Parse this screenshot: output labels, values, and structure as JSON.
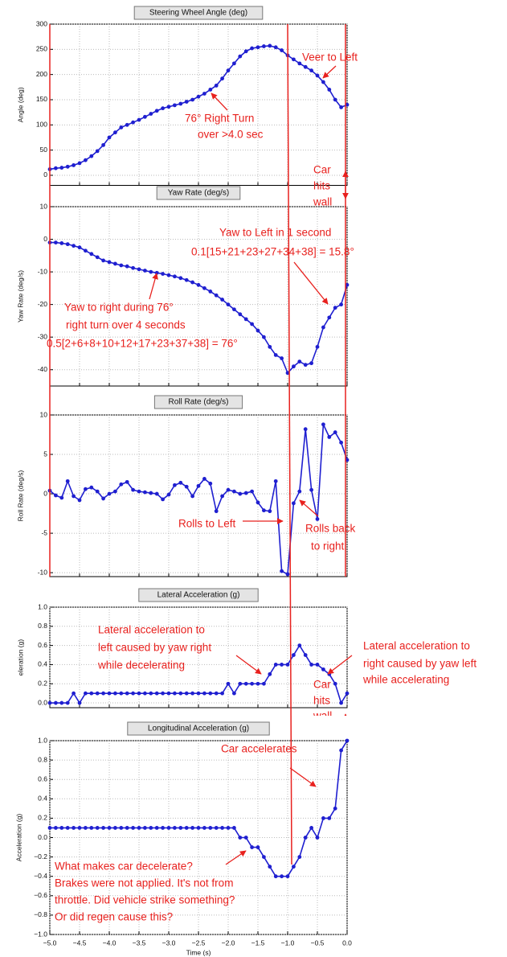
{
  "chart_data": [
    {
      "type": "line",
      "title": "Steering Wheel Angle (deg)",
      "ylabel": "Angle (deg)",
      "color": "#1f1fd0",
      "x": [
        -5,
        -4.9,
        -4.8,
        -4.7,
        -4.6,
        -4.5,
        -4.4,
        -4.3,
        -4.2,
        -4.1,
        -4,
        -3.9,
        -3.8,
        -3.7,
        -3.6,
        -3.5,
        -3.4,
        -3.3,
        -3.2,
        -3.1,
        -3,
        -2.9,
        -2.8,
        -2.7,
        -2.6,
        -2.5,
        -2.4,
        -2.3,
        -2.2,
        -2.1,
        -2,
        -1.9,
        -1.8,
        -1.7,
        -1.6,
        -1.5,
        -1.4,
        -1.3,
        -1.2,
        -1.1,
        -1,
        -0.9,
        -0.8,
        -0.7,
        -0.6,
        -0.5,
        -0.4,
        -0.3,
        -0.2,
        -0.1,
        0
      ],
      "values": [
        12,
        14,
        15,
        17,
        20,
        24,
        30,
        38,
        48,
        60,
        75,
        85,
        95,
        100,
        105,
        110,
        116,
        122,
        128,
        133,
        136,
        139,
        142,
        146,
        150,
        156,
        162,
        170,
        178,
        192,
        208,
        222,
        236,
        246,
        252,
        254,
        256,
        257,
        254,
        248,
        238,
        230,
        222,
        215,
        208,
        198,
        185,
        170,
        150,
        135,
        140
      ],
      "xlim": [
        -5,
        0
      ],
      "xticks": [
        -5,
        -4.5,
        -4,
        -3.5,
        -3,
        -2.5,
        -2,
        -1.5,
        -1,
        -0.5,
        0
      ],
      "ylim": [
        -20,
        300
      ],
      "yticks": [
        0,
        50,
        100,
        150,
        200,
        250,
        300
      ],
      "grid": true,
      "annotations": [
        "Veer to Left",
        "76° Right Turn",
        "over >4.0 sec",
        "Car",
        "hits",
        "wall"
      ]
    },
    {
      "type": "line",
      "title": "Yaw Rate (deg/s)",
      "ylabel": "Yaw Rate (deg/s)",
      "color": "#1f1fd0",
      "x": [
        -5,
        -4.9,
        -4.8,
        -4.7,
        -4.6,
        -4.5,
        -4.4,
        -4.3,
        -4.2,
        -4.1,
        -4,
        -3.9,
        -3.8,
        -3.7,
        -3.6,
        -3.5,
        -3.4,
        -3.3,
        -3.2,
        -3.1,
        -3,
        -2.9,
        -2.8,
        -2.7,
        -2.6,
        -2.5,
        -2.4,
        -2.3,
        -2.2,
        -2.1,
        -2,
        -1.9,
        -1.8,
        -1.7,
        -1.6,
        -1.5,
        -1.4,
        -1.3,
        -1.2,
        -1.1,
        -1,
        -0.9,
        -0.8,
        -0.7,
        -0.6,
        -0.5,
        -0.4,
        -0.3,
        -0.2,
        -0.1,
        0
      ],
      "values": [
        -1,
        -1,
        -1.2,
        -1.5,
        -2,
        -2.5,
        -3.5,
        -4.5,
        -5.5,
        -6.5,
        -7,
        -7.5,
        -8,
        -8.3,
        -8.8,
        -9.2,
        -9.6,
        -10,
        -10.3,
        -10.6,
        -11,
        -11.4,
        -11.9,
        -12.5,
        -13.2,
        -14,
        -15,
        -16,
        -17.2,
        -18.5,
        -20,
        -21.5,
        -23,
        -24.5,
        -26,
        -28,
        -30,
        -33,
        -35.5,
        -36.5,
        -41,
        -39,
        -37.5,
        -38.5,
        -38,
        -33,
        -27,
        -24,
        -21,
        -20,
        -14
      ],
      "xlim": [
        -5,
        0
      ],
      "xticks": [
        -5,
        -4.5,
        -4,
        -3.5,
        -3,
        -2.5,
        -2,
        -1.5,
        -1,
        -0.5,
        0
      ],
      "ylim": [
        -45,
        10
      ],
      "yticks": [
        -40,
        -30,
        -20,
        -10,
        0,
        10
      ],
      "grid": true,
      "annotations": [
        "Yaw to Left in 1 second",
        "0.1[15+21+23+27+34+38] = 15.8°",
        "Yaw to right during 76°",
        "right turn over 4 seconds",
        "0.5[2+6+8+10+12+17+23+37+38] = 76°"
      ]
    },
    {
      "type": "line",
      "title": "Roll Rate (deg/s)",
      "ylabel": "Roll Rate (deg/s)",
      "color": "#1f1fd0",
      "x": [
        -5,
        -4.9,
        -4.8,
        -4.7,
        -4.6,
        -4.5,
        -4.4,
        -4.3,
        -4.2,
        -4.1,
        -4,
        -3.9,
        -3.8,
        -3.7,
        -3.6,
        -3.5,
        -3.4,
        -3.3,
        -3.2,
        -3.1,
        -3,
        -2.9,
        -2.8,
        -2.7,
        -2.6,
        -2.5,
        -2.4,
        -2.3,
        -2.2,
        -2.1,
        -2,
        -1.9,
        -1.8,
        -1.7,
        -1.6,
        -1.5,
        -1.4,
        -1.3,
        -1.2,
        -1.1,
        -1,
        -0.9,
        -0.8,
        -0.7,
        -0.6,
        -0.5,
        -0.4,
        -0.3,
        -0.2,
        -0.1,
        0
      ],
      "values": [
        0.4,
        -0.2,
        -0.5,
        1.6,
        -0.3,
        -0.8,
        0.6,
        0.8,
        0.3,
        -0.6,
        0,
        0.3,
        1.2,
        1.5,
        0.5,
        0.3,
        0.2,
        0.1,
        0,
        -0.7,
        -0.1,
        1.1,
        1.4,
        0.9,
        -0.3,
        1,
        1.9,
        1.3,
        -2.2,
        -0.3,
        0.5,
        0.3,
        0,
        0.1,
        0.3,
        -1.1,
        -2.1,
        -2.2,
        1.6,
        -9.8,
        -10.2,
        -1.2,
        0.3,
        8.2,
        0.5,
        -3.2,
        8.8,
        7.2,
        7.8,
        6.5,
        4.3
      ],
      "xlim": [
        -5,
        0
      ],
      "xticks": [
        -5,
        -4.5,
        -4,
        -3.5,
        -3,
        -2.5,
        -2,
        -1.5,
        -1,
        -0.5,
        0
      ],
      "ylim": [
        -10.5,
        10
      ],
      "yticks": [
        -10,
        -5,
        0,
        5,
        10
      ],
      "grid": true,
      "annotations": [
        "Rolls to Left",
        "Rolls back",
        "to right"
      ]
    },
    {
      "type": "line",
      "title": "Lateral Acceleration (g)",
      "ylabel": "eleration (g)",
      "color": "#1f1fd0",
      "x": [
        -5,
        -4.9,
        -4.8,
        -4.7,
        -4.6,
        -4.5,
        -4.4,
        -4.3,
        -4.2,
        -4.1,
        -4,
        -3.9,
        -3.8,
        -3.7,
        -3.6,
        -3.5,
        -3.4,
        -3.3,
        -3.2,
        -3.1,
        -3,
        -2.9,
        -2.8,
        -2.7,
        -2.6,
        -2.5,
        -2.4,
        -2.3,
        -2.2,
        -2.1,
        -2,
        -1.9,
        -1.8,
        -1.7,
        -1.6,
        -1.5,
        -1.4,
        -1.3,
        -1.2,
        -1.1,
        -1,
        -0.9,
        -0.8,
        -0.7,
        -0.6,
        -0.5,
        -0.4,
        -0.3,
        -0.2,
        -0.1,
        0
      ],
      "values": [
        0,
        0,
        0,
        0,
        0.1,
        0,
        0.1,
        0.1,
        0.1,
        0.1,
        0.1,
        0.1,
        0.1,
        0.1,
        0.1,
        0.1,
        0.1,
        0.1,
        0.1,
        0.1,
        0.1,
        0.1,
        0.1,
        0.1,
        0.1,
        0.1,
        0.1,
        0.1,
        0.1,
        0.1,
        0.2,
        0.1,
        0.2,
        0.2,
        0.2,
        0.2,
        0.2,
        0.3,
        0.4,
        0.4,
        0.4,
        0.5,
        0.6,
        0.5,
        0.4,
        0.4,
        0.35,
        0.3,
        0.2,
        0,
        0.1
      ],
      "xlim": [
        -5,
        0
      ],
      "xticks": [
        -5,
        -4.5,
        -4,
        -3.5,
        -3,
        -2.5,
        -2,
        -1.5,
        -1,
        -0.5,
        0
      ],
      "ylim": [
        -0.05,
        1.0
      ],
      "yticks": [
        {
          "value": 0,
          "label": "0.0"
        },
        0.2,
        0.4,
        0.6,
        0.8,
        {
          "value": 1,
          "label": "1.0"
        }
      ],
      "grid": true,
      "annotations": [
        "Lateral acceleration to",
        "left caused by yaw right",
        "while decelerating",
        "Lateral acceleration to",
        "right caused by yaw left",
        "while accelerating",
        "Car",
        "hits",
        "wall"
      ]
    },
    {
      "type": "line",
      "title": "Longitudinal Acceleration (g)",
      "ylabel": "Acceleration (g)",
      "xlabel": "Time (s)",
      "color": "#1f1fd0",
      "x": [
        -5,
        -4.9,
        -4.8,
        -4.7,
        -4.6,
        -4.5,
        -4.4,
        -4.3,
        -4.2,
        -4.1,
        -4,
        -3.9,
        -3.8,
        -3.7,
        -3.6,
        -3.5,
        -3.4,
        -3.3,
        -3.2,
        -3.1,
        -3,
        -2.9,
        -2.8,
        -2.7,
        -2.6,
        -2.5,
        -2.4,
        -2.3,
        -2.2,
        -2.1,
        -2,
        -1.9,
        -1.8,
        -1.7,
        -1.6,
        -1.5,
        -1.4,
        -1.3,
        -1.2,
        -1.1,
        -1,
        -0.9,
        -0.8,
        -0.7,
        -0.6,
        -0.5,
        -0.4,
        -0.3,
        -0.2,
        -0.1,
        0
      ],
      "values": [
        0.1,
        0.1,
        0.1,
        0.1,
        0.1,
        0.1,
        0.1,
        0.1,
        0.1,
        0.1,
        0.1,
        0.1,
        0.1,
        0.1,
        0.1,
        0.1,
        0.1,
        0.1,
        0.1,
        0.1,
        0.1,
        0.1,
        0.1,
        0.1,
        0.1,
        0.1,
        0.1,
        0.1,
        0.1,
        0.1,
        0.1,
        0.1,
        0,
        0,
        -0.1,
        -0.1,
        -0.2,
        -0.3,
        -0.4,
        -0.4,
        -0.4,
        -0.3,
        -0.2,
        0,
        0.1,
        0,
        0.2,
        0.2,
        0.3,
        0.9,
        1.0
      ],
      "xlim": [
        -5,
        0
      ],
      "xticks": [
        {
          "value": -5,
          "label": "−5.0"
        },
        {
          "value": -4.5,
          "label": "−4.5"
        },
        {
          "value": -4,
          "label": "−4.0"
        },
        {
          "value": -3.5,
          "label": "−3.5"
        },
        {
          "value": -3,
          "label": "−3.0"
        },
        {
          "value": -2.5,
          "label": "−2.5"
        },
        {
          "value": -2,
          "label": "−2.0"
        },
        {
          "value": -1.5,
          "label": "−1.5"
        },
        {
          "value": -1,
          "label": "−1.0"
        },
        {
          "value": -0.5,
          "label": "−0.5"
        },
        {
          "value": 0,
          "label": "0.0"
        }
      ],
      "ylim": [
        -1,
        1
      ],
      "yticks": [
        {
          "value": -1,
          "label": "−1.0"
        },
        {
          "value": -0.8,
          "label": "−0.8"
        },
        {
          "value": -0.6,
          "label": "−0.6"
        },
        {
          "value": -0.4,
          "label": "−0.4"
        },
        {
          "value": -0.2,
          "label": "−0.2"
        },
        {
          "value": 0,
          "label": "0.0"
        },
        0.2,
        0.4,
        0.6,
        0.8,
        {
          "value": 1,
          "label": "1.0"
        }
      ],
      "grid": true,
      "annotations": [
        "Car accelerates",
        "What makes car decelerate?",
        "Brakes were not applied.  It's not from",
        "throttle.  Did vehicle strike something?",
        "Or did regen cause this?"
      ]
    }
  ]
}
